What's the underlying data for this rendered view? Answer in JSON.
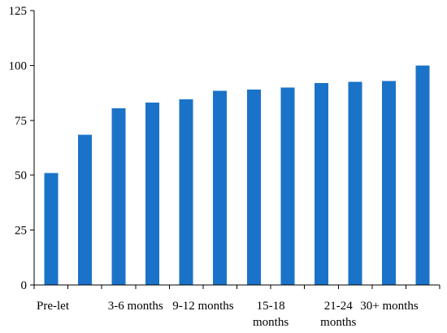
{
  "chart_data": {
    "type": "bar",
    "title": "",
    "xlabel": "",
    "ylabel": "",
    "ylim": [
      0,
      125
    ],
    "yticks": [
      0,
      25,
      50,
      75,
      100,
      125
    ],
    "grid": false,
    "legend": "none",
    "bar_color": "#1a73c8",
    "categories": [
      "Pre-let",
      "",
      "3-6 months",
      "",
      "9-12 months",
      "",
      "15-18 months",
      "",
      "21-24 months",
      "",
      "30+ months",
      ""
    ],
    "category_label_lines": [
      [
        "Pre-let"
      ],
      [],
      [
        "3-6 months"
      ],
      [],
      [
        "9-12 months"
      ],
      [],
      [
        "15-18",
        "months"
      ],
      [],
      [
        "21-24",
        "months"
      ],
      [],
      [
        "30+ months"
      ],
      []
    ],
    "values": [
      51,
      68.5,
      80.5,
      83,
      84.5,
      88.5,
      89,
      90,
      92,
      92.5,
      93,
      100
    ]
  }
}
